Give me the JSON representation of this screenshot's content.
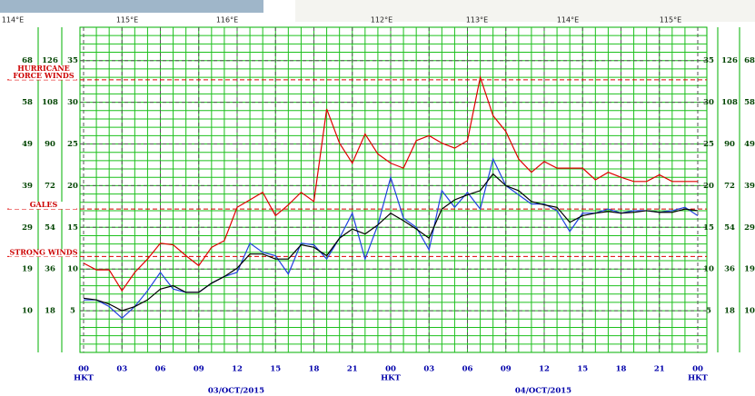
{
  "chart_data": {
    "type": "line",
    "map_labels": [
      "114°E",
      "115°E",
      "116°E",
      "112°E",
      "113°E",
      "114°E",
      "115°E"
    ],
    "x": [
      0,
      1,
      2,
      3,
      4,
      5,
      6,
      7,
      8,
      9,
      10,
      11,
      12,
      13,
      14,
      15,
      16,
      17,
      18,
      19,
      20,
      21,
      22,
      23,
      24,
      25,
      26,
      27,
      28,
      29,
      30,
      31,
      32,
      33,
      34,
      35,
      36,
      37,
      38,
      39,
      40,
      41,
      42,
      43,
      44,
      45,
      46,
      47,
      48
    ],
    "xlim": [
      0,
      48
    ],
    "xticks": [
      {
        "value": 0,
        "label": "00"
      },
      {
        "value": 3,
        "label": "03"
      },
      {
        "value": 6,
        "label": "06"
      },
      {
        "value": 9,
        "label": "09"
      },
      {
        "value": 12,
        "label": "12"
      },
      15,
      18,
      21,
      {
        "value": 24,
        "label": "00"
      },
      {
        "value": 27,
        "label": "03"
      },
      {
        "value": 30,
        "label": "06"
      },
      {
        "value": 33,
        "label": "09"
      },
      {
        "value": 36,
        "label": "12"
      },
      {
        "value": 39,
        "label": "15"
      },
      {
        "value": 42,
        "label": "18"
      },
      {
        "value": 45,
        "label": "21"
      },
      {
        "value": 48,
        "label": "00"
      }
    ],
    "x_sublabels": [
      {
        "value": 0,
        "label": "HKT"
      },
      {
        "value": 24,
        "label": "HKT"
      },
      {
        "value": 48,
        "label": "HKT"
      }
    ],
    "dates": [
      "03/OCT/2015",
      "04/OCT/2015"
    ],
    "ylim": [
      0,
      39
    ],
    "yticks": [
      5,
      10,
      15,
      20,
      25,
      30,
      35
    ],
    "yticks_kmh": [
      {
        "value": 5,
        "label": "18"
      },
      {
        "value": 10,
        "label": "36"
      },
      {
        "value": 15,
        "label": "54"
      },
      {
        "value": 20,
        "label": "72"
      },
      {
        "value": 25,
        "label": "90"
      },
      {
        "value": 30,
        "label": "108"
      },
      {
        "value": 35,
        "label": "126"
      }
    ],
    "yticks_knots": [
      {
        "value": 5,
        "label": "10"
      },
      {
        "value": 10,
        "label": "19"
      },
      {
        "value": 15,
        "label": "29"
      },
      {
        "value": 20,
        "label": "39"
      },
      {
        "value": 25,
        "label": "49"
      },
      {
        "value": 30,
        "label": "58"
      },
      {
        "value": 35,
        "label": "68"
      }
    ],
    "thresholds": [
      {
        "value": 32.7,
        "label": [
          "HURRICANE",
          "FORCE WINDS"
        ]
      },
      {
        "value": 17.2,
        "label": [
          "GALES"
        ]
      },
      {
        "value": 11.5,
        "label": [
          "STRONG WINDS"
        ]
      }
    ],
    "grid": true,
    "series": [
      {
        "color": "#e00000",
        "values": [
          10.7,
          9.9,
          9.9,
          7.4,
          9.6,
          11.2,
          13.1,
          12.9,
          11.6,
          10.4,
          12.6,
          13.4,
          17.4,
          18.3,
          19.2,
          16.4,
          17.7,
          19.2,
          18.1,
          29.2,
          25.1,
          22.7,
          26.2,
          23.8,
          22.7,
          22.1,
          25.4,
          26.0,
          25.1,
          24.5,
          25.4,
          33.0,
          28.4,
          26.5,
          23.2,
          21.6,
          22.9,
          22.1,
          22.1,
          22.1,
          20.7,
          21.6,
          21.0,
          20.5,
          20.5,
          21.3,
          20.5,
          20.5,
          20.5
        ]
      },
      {
        "color": "#2040e0",
        "values": [
          6.3,
          6.3,
          5.5,
          4.1,
          5.5,
          7.4,
          9.6,
          7.6,
          7.2,
          7.2,
          8.3,
          9.1,
          9.6,
          13.1,
          12.0,
          11.6,
          9.4,
          13.1,
          12.9,
          11.2,
          13.7,
          16.7,
          11.2,
          15.3,
          21.0,
          16.1,
          15.0,
          12.3,
          19.4,
          17.4,
          19.2,
          17.2,
          23.2,
          20.0,
          18.9,
          17.8,
          17.8,
          17.0,
          14.5,
          16.7,
          16.7,
          17.2,
          16.7,
          17.0,
          17.0,
          16.8,
          17.0,
          17.4,
          16.4
        ]
      },
      {
        "color": "#000000",
        "values": [
          6.5,
          6.3,
          5.8,
          5.0,
          5.5,
          6.3,
          7.6,
          8.0,
          7.2,
          7.2,
          8.3,
          9.1,
          10.1,
          11.8,
          11.8,
          11.2,
          11.2,
          12.9,
          12.6,
          11.6,
          13.7,
          14.8,
          14.2,
          15.3,
          16.7,
          15.8,
          14.8,
          13.7,
          17.2,
          18.3,
          18.9,
          19.4,
          21.4,
          20.0,
          19.4,
          18.1,
          17.7,
          17.4,
          15.6,
          16.4,
          16.7,
          16.9,
          16.7,
          16.8,
          17.0,
          16.8,
          16.8,
          17.2,
          17.0
        ]
      }
    ]
  }
}
